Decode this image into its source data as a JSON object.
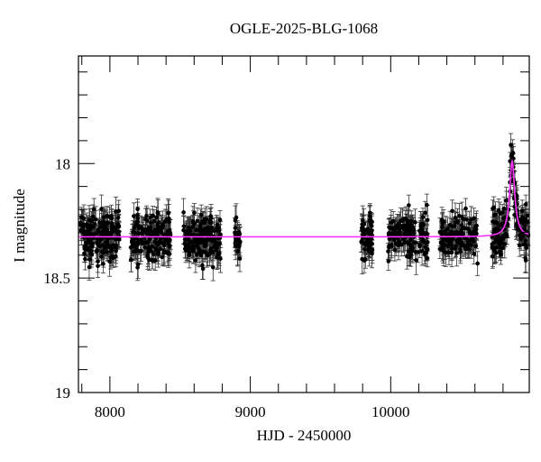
{
  "chart_data": {
    "type": "scatter",
    "title": "OGLE-2025-BLG-1068",
    "xlabel": "HJD - 2450000",
    "ylabel": "I magnitude",
    "xlim": [
      7776,
      10987
    ],
    "ylim": [
      19.0,
      17.53
    ],
    "y_inverted": true,
    "x_major_ticks": [
      8000,
      9000,
      10000
    ],
    "x_tick_labels": [
      "8000",
      "9000",
      "10000"
    ],
    "x_minor_step": 200,
    "y_major_ticks": [
      18.0,
      18.5,
      19.0
    ],
    "y_tick_labels": [
      "18",
      "18.5",
      "19"
    ],
    "y_minor_step": 0.1,
    "grid": false,
    "legend": null,
    "colors": {
      "points": "#000000",
      "errorbars": "#333333",
      "model": "#ff33ff",
      "axes": "#000000"
    },
    "series": [
      {
        "name": "OGLE photometry",
        "kind": "points_with_errorbars",
        "baseline_mag": 18.32,
        "scatter_mag": 0.05,
        "typical_error": 0.05,
        "seasons": [
          {
            "x_start": 7790,
            "x_end": 8070,
            "n": 180
          },
          {
            "x_start": 8147,
            "x_end": 8436,
            "n": 170
          },
          {
            "x_start": 8520,
            "x_end": 8790,
            "n": 180
          },
          {
            "x_start": 8890,
            "x_end": 8930,
            "n": 25
          },
          {
            "x_start": 9790,
            "x_end": 9870,
            "n": 60
          },
          {
            "x_start": 9980,
            "x_end": 10270,
            "n": 140
          },
          {
            "x_start": 10350,
            "x_end": 10620,
            "n": 130
          },
          {
            "x_start": 10720,
            "x_end": 10980,
            "n": 160
          }
        ]
      },
      {
        "name": "Microlensing model",
        "kind": "line",
        "baseline_mag": 18.32,
        "peak_mag": 17.99,
        "t0": 10865,
        "tE": 22
      }
    ],
    "peak": {
      "x": 10865,
      "y": 17.99
    }
  }
}
